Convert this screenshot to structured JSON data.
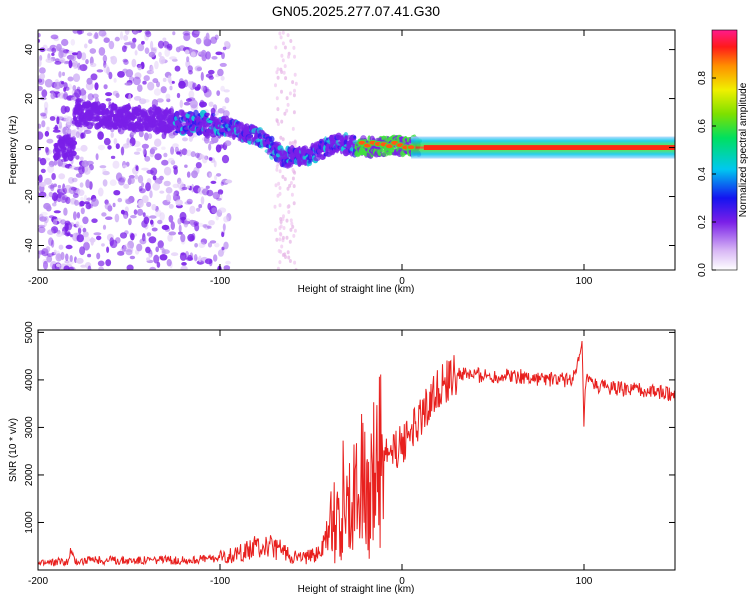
{
  "title": "GN05.2025.277.07.41.G30",
  "colors": {
    "snr_line": "#e8201e",
    "frame": "#000000",
    "background": "#ffffff"
  },
  "chart_data": [
    {
      "type": "heatmap",
      "name": "spectrogram",
      "title": "GN05.2025.277.07.41.G30",
      "xlabel": "Height of straight line (km)",
      "ylabel": "Frequency (Hz)",
      "xlim": [
        -200,
        150
      ],
      "ylim": [
        -50,
        48
      ],
      "x_ticks": [
        -200,
        -100,
        0,
        100
      ],
      "x_tick_labels": [
        "-200",
        "-100",
        "0",
        "100"
      ],
      "y_ticks": [
        -40,
        -20,
        0,
        20,
        40
      ],
      "y_tick_labels": [
        "-40",
        "-20",
        "0",
        "20",
        "40"
      ],
      "colorbar": {
        "label": "Normalized spectral amplitude",
        "range": [
          0,
          1
        ],
        "ticks": [
          0.0,
          0.2,
          0.4,
          0.6,
          0.8
        ],
        "tick_labels": [
          "0.0",
          "0.2",
          "0.4",
          "0.6",
          "0.8"
        ]
      },
      "description_points": [
        {
          "height_km": -180,
          "freq_hz": 14,
          "amp": 0.35
        },
        {
          "height_km": -120,
          "freq_hz": 10,
          "amp": 0.45
        },
        {
          "height_km": -100,
          "freq_hz": 9,
          "amp": 0.45
        },
        {
          "height_km": -80,
          "freq_hz": 5,
          "amp": 0.4
        },
        {
          "height_km": -65,
          "freq_hz": -4,
          "amp": 0.45
        },
        {
          "height_km": -50,
          "freq_hz": -3,
          "amp": 0.45
        },
        {
          "height_km": -35,
          "freq_hz": 2,
          "amp": 0.5
        },
        {
          "height_km": -20,
          "freq_hz": 0,
          "amp": 0.9
        },
        {
          "height_km": 0,
          "freq_hz": 1,
          "amp": 0.6
        },
        {
          "height_km": 20,
          "freq_hz": 0,
          "amp": 0.9
        },
        {
          "height_km": 60,
          "freq_hz": 0,
          "amp": 0.9
        },
        {
          "height_km": 100,
          "freq_hz": 0,
          "amp": 0.9
        },
        {
          "height_km": 150,
          "freq_hz": 0,
          "amp": 1.0
        }
      ]
    },
    {
      "type": "line",
      "name": "snr",
      "xlabel": "Height of straight line (km)",
      "ylabel": "SNR (10 * v/v)",
      "xlim": [
        -200,
        150
      ],
      "ylim": [
        0,
        5050
      ],
      "x_ticks": [
        -200,
        -100,
        0,
        100
      ],
      "x_tick_labels": [
        "-200",
        "-100",
        "0",
        "100"
      ],
      "y_ticks": [
        1000,
        2000,
        3000,
        4000,
        5000
      ],
      "y_tick_labels": [
        "1000",
        "2000",
        "3000",
        "4000",
        "5000"
      ],
      "series": [
        {
          "name": "SNR",
          "x": [
            -200,
            -190,
            -183,
            -182,
            -180,
            -170,
            -160,
            -150,
            -140,
            -130,
            -120,
            -110,
            -100,
            -90,
            -85,
            -80,
            -75,
            -70,
            -65,
            -60,
            -55,
            -50,
            -45,
            -40,
            -35,
            -30,
            -25,
            -20,
            -15,
            -10,
            -5,
            0,
            5,
            10,
            15,
            20,
            25,
            30,
            35,
            40,
            50,
            60,
            70,
            80,
            90,
            95,
            99,
            100,
            101,
            105,
            110,
            120,
            130,
            140,
            150
          ],
          "y": [
            130,
            170,
            180,
            450,
            190,
            200,
            210,
            200,
            210,
            210,
            200,
            230,
            260,
            330,
            420,
            480,
            520,
            450,
            400,
            300,
            260,
            280,
            400,
            800,
            1500,
            1700,
            1500,
            1900,
            2100,
            2400,
            2500,
            2600,
            3000,
            3200,
            3500,
            3800,
            4000,
            4100,
            4120,
            4100,
            4080,
            4100,
            4050,
            4020,
            4000,
            4050,
            4700,
            3000,
            4000,
            3900,
            3850,
            3800,
            3780,
            3750,
            3700
          ]
        }
      ]
    }
  ]
}
